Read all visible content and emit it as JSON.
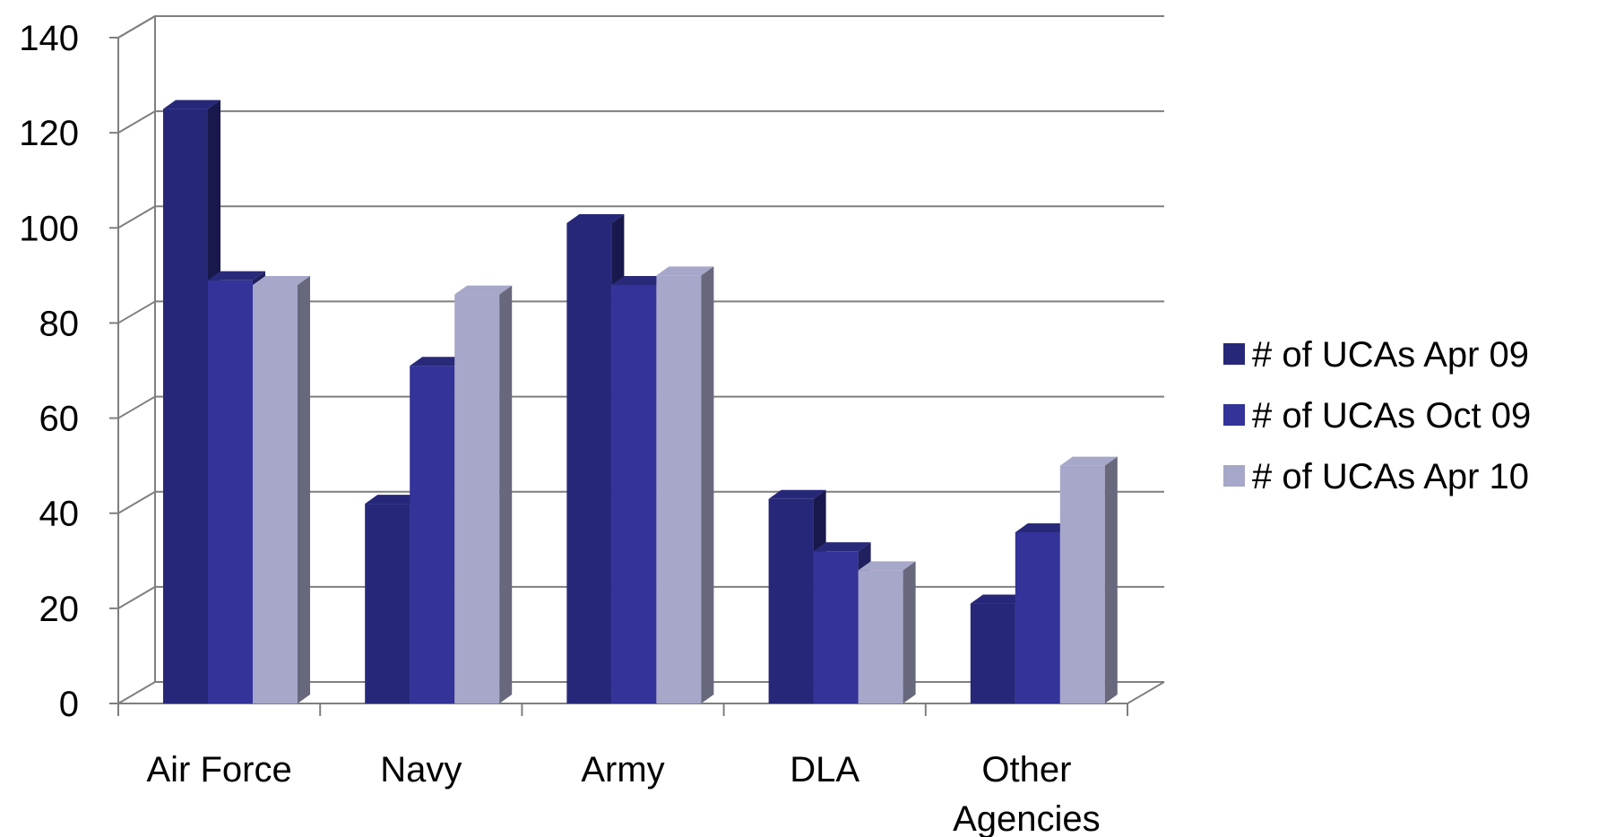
{
  "chart_data": {
    "type": "bar",
    "title": "",
    "xlabel": "",
    "ylabel": "",
    "categories": [
      "Air Force",
      "Navy",
      "Army",
      "DLA",
      "Other Agencies"
    ],
    "category_lines": [
      [
        "Air Force"
      ],
      [
        "Navy"
      ],
      [
        "Army"
      ],
      [
        "DLA"
      ],
      [
        "Other",
        "Agencies"
      ]
    ],
    "series": [
      {
        "name": "# of UCAs Apr 09",
        "values": [
          125,
          42,
          101,
          43,
          21
        ],
        "color": "#27277A"
      },
      {
        "name": "# of UCAs Oct 09",
        "values": [
          89,
          71,
          88,
          32,
          36
        ],
        "color": "#333399"
      },
      {
        "name": "# of UCAs Apr 10",
        "values": [
          88,
          86,
          90,
          28,
          50
        ],
        "color": "#A7A7C9"
      }
    ],
    "ylim": [
      0,
      140
    ],
    "yticks": [
      0,
      20,
      40,
      60,
      80,
      100,
      120,
      140
    ],
    "grid": true,
    "three_d": true,
    "legend": "right"
  }
}
